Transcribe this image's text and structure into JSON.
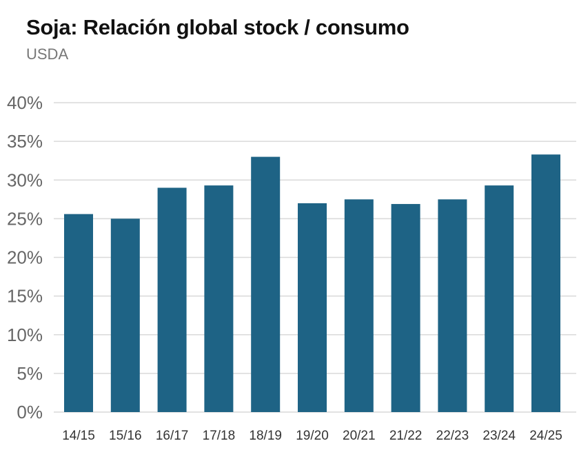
{
  "chart_data": {
    "type": "bar",
    "title": "Soja: Relación global stock / consumo",
    "subtitle": "USDA",
    "xlabel": "",
    "ylabel": "",
    "categories": [
      "14/15",
      "15/16",
      "16/17",
      "17/18",
      "18/19",
      "19/20",
      "20/21",
      "21/22",
      "22/23",
      "23/24",
      "24/25"
    ],
    "values": [
      25.6,
      25.0,
      29.0,
      29.3,
      33.0,
      27.0,
      27.5,
      26.9,
      27.5,
      29.3,
      33.3
    ],
    "unit": "%",
    "ylim": [
      0,
      40
    ],
    "yticks": [
      "0%",
      "5%",
      "10%",
      "15%",
      "20%",
      "25%",
      "30%",
      "35%",
      "40%"
    ],
    "grid": true,
    "legend": "none",
    "colors": {
      "bar": "#1e6385",
      "grid": "#d9d9d9",
      "tick_label": "#666666"
    }
  }
}
